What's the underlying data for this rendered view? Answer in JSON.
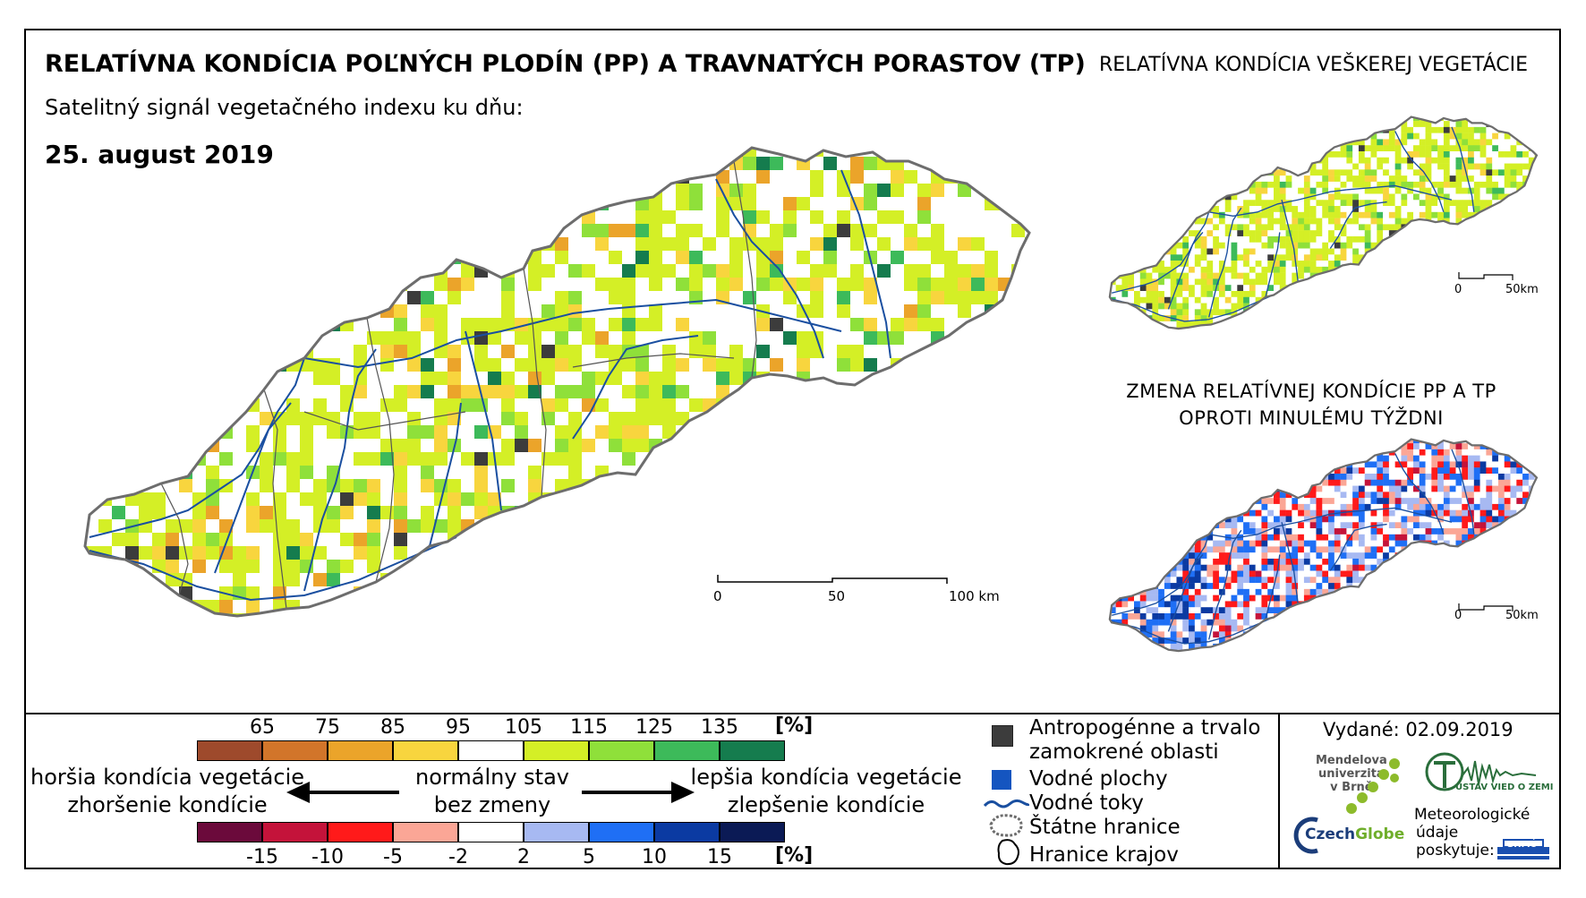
{
  "title": "RELATÍVNA KONDÍCIA POĽNÝCH PLODÍN (PP) A TRAVNATÝCH PORASTOV (TP)",
  "subtitle": "Satelitný signál vegetačného indexu ku dňu:",
  "date": "25. august 2019",
  "right_title": "RELATÍVNA KONDÍCIA VEŠKEREJ VEGETÁCIE",
  "change_title": "ZMENA RELATÍVNEJ KONDÍCIE PP A TP OPROTI MINULÉMU TÝŽDNI",
  "scalebar_main": {
    "labels": [
      "0",
      "50",
      "100 km"
    ]
  },
  "scalebar_small": {
    "labels": [
      "0",
      "50km"
    ]
  },
  "condition_scale": {
    "ticks": [
      "65",
      "75",
      "85",
      "95",
      "105",
      "115",
      "125",
      "135"
    ],
    "unit": "[%]",
    "colors": [
      "#9e4a2c",
      "#d2752a",
      "#eba42a",
      "#f8d53e",
      "#ffffff",
      "#d4ef26",
      "#8fe03a",
      "#3dba5a",
      "#157c4e"
    ]
  },
  "change_scale": {
    "ticks": [
      "-15",
      "-10",
      "-5",
      "-2",
      "2",
      "5",
      "10",
      "15"
    ],
    "unit": "[%]",
    "colors": [
      "#6b0a3b",
      "#c4133a",
      "#ff1a1a",
      "#fba696",
      "#ffffff",
      "#a7b9f2",
      "#1f6ff5",
      "#0b3aa2",
      "#0b1a55"
    ]
  },
  "legend_text": {
    "worse_line1": "horšia kondícia vegetácie",
    "worse_line2": "zhoršenie kondície",
    "normal_line1": "normálny stav",
    "normal_line2": "bez zmeny",
    "better_line1": "lepšia kondícia vegetácie",
    "better_line2": "zlepšenie kondície"
  },
  "map_key": [
    {
      "label": "Antropogénne a trvalo zamokrené oblasti",
      "line1": "Antropogénne a trvalo",
      "line2": "zamokrené oblasti",
      "color": "#3c3c3c"
    },
    {
      "label": "Vodné plochy",
      "color": "#1555c0"
    },
    {
      "label": "Vodné toky",
      "color": "#1a4fa0"
    },
    {
      "label": "Štátne hranice",
      "color": "#6d6d6d"
    },
    {
      "label": "Hranice krajov",
      "color": "#000000"
    }
  ],
  "issued": "Vydané: 02.09.2019",
  "logos": {
    "mendel_line1": "Mendelova",
    "mendel_line2": "univerzita",
    "mendel_line3": "v Brně",
    "czechglobe_a": "Czech",
    "czechglobe_b": "Globe",
    "ivz": "ÚSTAV VIED O ZEMI",
    "meteo_line1": "Meteorologické",
    "meteo_line2": "údaje",
    "meteo_line3": "poskytuje:",
    "shmu": "SHMÚ"
  }
}
